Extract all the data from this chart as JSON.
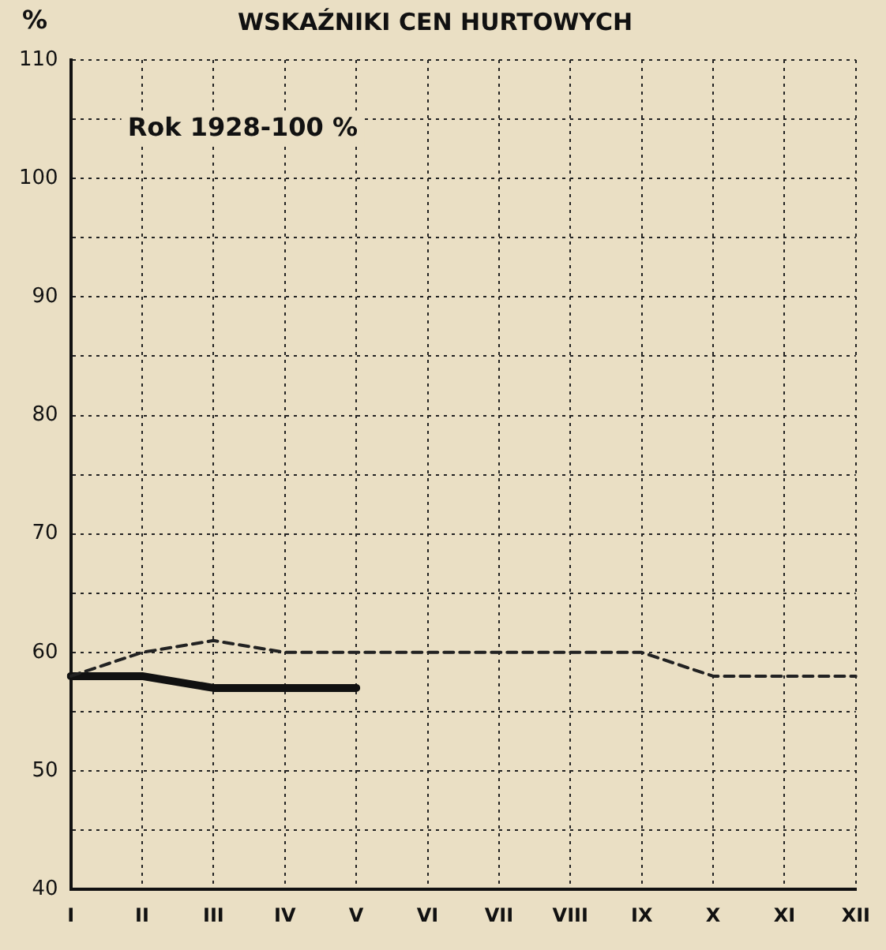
{
  "chart_data": {
    "type": "line",
    "title": "WSKAŹNIKI CEN HURTOWYCH",
    "ylabel": "%",
    "annotations": [
      "Rok 1928-100 %"
    ],
    "categories": [
      "I",
      "II",
      "III",
      "IV",
      "V",
      "VI",
      "VII",
      "VIII",
      "IX",
      "X",
      "XI",
      "XII"
    ],
    "series": [
      {
        "color": "#222222",
        "line_style": "dashed",
        "values": [
          58,
          60,
          61,
          60,
          60,
          60,
          60,
          60,
          60,
          58,
          58,
          58
        ]
      },
      {
        "color": "#111111",
        "line_style": "solid",
        "values": [
          58,
          58,
          57,
          57,
          57,
          null,
          null,
          null,
          null,
          null,
          null,
          null
        ]
      }
    ],
    "ylim": [
      40,
      110
    ],
    "yticks": [
      40,
      {
        "value": 45,
        "label": null
      },
      50,
      {
        "value": 55,
        "label": null
      },
      60,
      {
        "value": 65,
        "label": null
      },
      70,
      {
        "value": 75,
        "label": null
      },
      80,
      {
        "value": 85,
        "label": null
      },
      90,
      {
        "value": 95,
        "label": null
      },
      100,
      {
        "value": 105,
        "label": null
      },
      110
    ],
    "grid": true,
    "legend": false,
    "marker": "none"
  }
}
